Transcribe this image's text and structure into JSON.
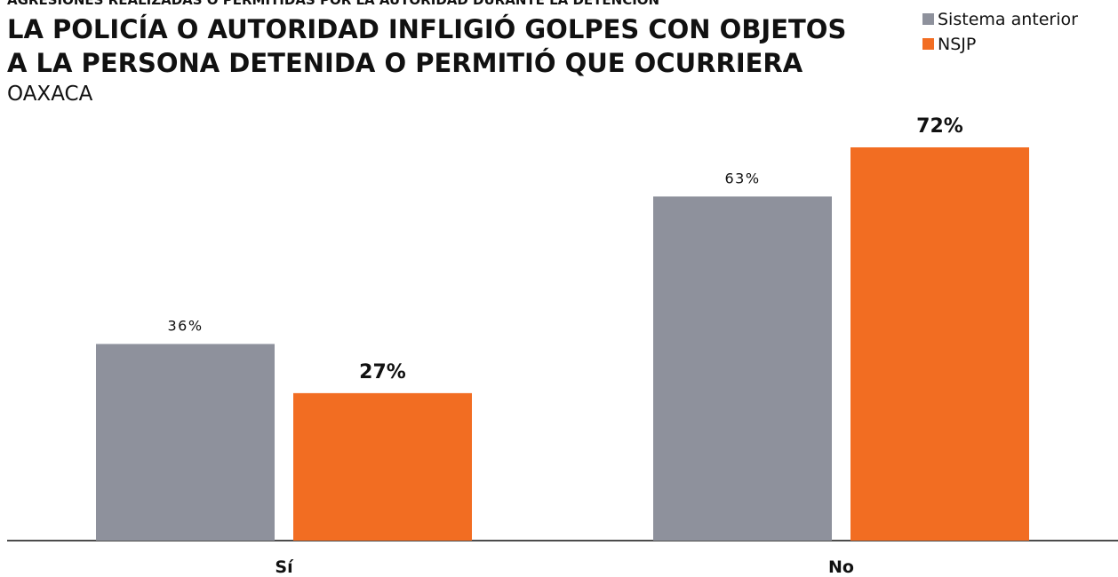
{
  "chart_data": {
    "type": "bar",
    "kicker": "AGRESIONES REALIZADAS O PERMITIDAS POR LA AUTORIDAD DURANTE LA DETENCIÓN",
    "title": [
      "LA POLICÍA O AUTORIDAD INFLIGIÓ GOLPES CON OBJETOS",
      "A LA PERSONA DETENIDA O PERMITIÓ QUE OCURRIERA"
    ],
    "subtitle": "OAXACA",
    "categories": [
      "Sí",
      "No"
    ],
    "series": [
      {
        "name": "Sistema anterior",
        "color": "#8e919c",
        "values": [
          36,
          63
        ],
        "value_labels": [
          "36%",
          "63%"
        ]
      },
      {
        "name": "NSJP",
        "color": "#f26d22",
        "values": [
          27,
          72
        ],
        "value_labels": [
          "27%",
          "72%"
        ]
      }
    ],
    "legend": "top-right"
  }
}
